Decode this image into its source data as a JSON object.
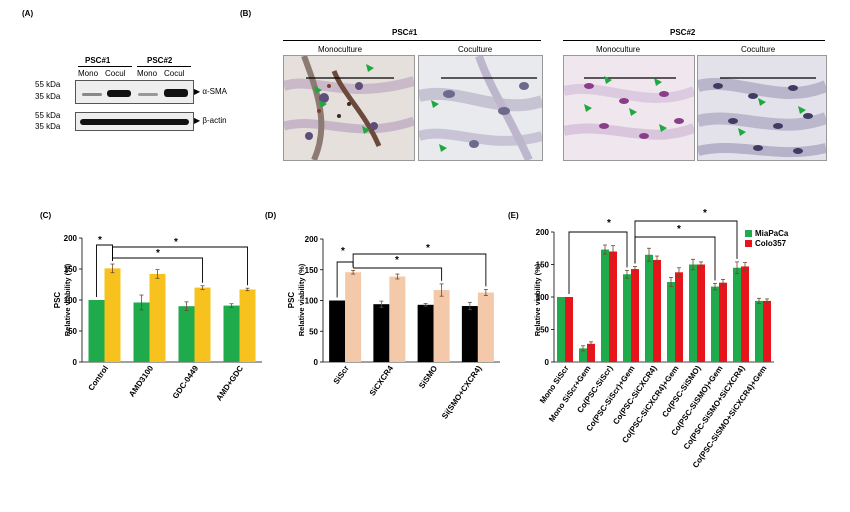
{
  "panels": {
    "A": {
      "label": "(A)",
      "groups": [
        "PSC#1",
        "PSC#2"
      ],
      "lanes": [
        "Mono",
        "Cocul",
        "Mono",
        "Cocul"
      ],
      "markers_top": [
        "55 kDa",
        "35 kDa"
      ],
      "markers_bottom": [
        "55 kDa",
        "35 kDa"
      ],
      "bands_top_label": "α-SMA",
      "bands_bottom_label": "β-actin"
    },
    "B": {
      "label": "(B)",
      "groups": [
        "PSC#1",
        "PSC#2"
      ],
      "images": [
        "Monoculture",
        "Coculture",
        "Monoculture",
        "Coculture"
      ]
    }
  },
  "chart_data": [
    {
      "id": "C",
      "label": "(C)",
      "type": "bar",
      "ylabel_top": "PSC",
      "ylabel": "Relative viability (%)",
      "ylim": [
        0,
        200
      ],
      "yticks": [
        0,
        50,
        100,
        150,
        200
      ],
      "categories": [
        "Control",
        "AMD3100",
        "GDC-0449",
        "AMD+GDC"
      ],
      "colors": [
        "#1faa4b",
        "#f7c11e"
      ],
      "series": [
        {
          "values": [
            100,
            96,
            90,
            91
          ],
          "errors": [
            0,
            12,
            7,
            3
          ]
        },
        {
          "values": [
            151,
            142,
            120,
            117
          ],
          "errors": [
            7,
            7,
            3,
            2
          ]
        }
      ],
      "annotations": [
        "*",
        "*",
        "*"
      ]
    },
    {
      "id": "D",
      "label": "(D)",
      "type": "bar",
      "ylabel_top": "PSC",
      "ylabel": "Relative viability (%)",
      "ylim": [
        0,
        200
      ],
      "yticks": [
        0,
        50,
        100,
        150,
        200
      ],
      "categories": [
        "SiScr",
        "SiCXCR4",
        "SiSMO",
        "Si(SMO+CXCR4)"
      ],
      "colors": [
        "#000000",
        "#f4c9aa"
      ],
      "series": [
        {
          "values": [
            100,
            94,
            93,
            91
          ],
          "errors": [
            0,
            5,
            2,
            6
          ]
        },
        {
          "values": [
            146,
            139,
            117,
            113
          ],
          "errors": [
            3,
            4,
            10,
            5
          ]
        }
      ],
      "annotations": [
        "*",
        "*",
        "*"
      ]
    },
    {
      "id": "E",
      "label": "(E)",
      "type": "bar",
      "ylabel": "Relative viability (%)",
      "ylim": [
        0,
        200
      ],
      "yticks": [
        0,
        50,
        100,
        150,
        200
      ],
      "categories": [
        "Mono SiScr",
        "Mono SiScr+Gem",
        "Co(PSC-SiScr)",
        "Co(PSC-SiScr)+Gem",
        "Co(PSC-SiCXCR4)",
        "Co(PSC-SiCXCR4)+Gem",
        "Co(PSC-SiSMO)",
        "Co(PSC-SiSMO)+Gem",
        "Co(PSC-SiSMO+SiCXCR4)",
        "Co(PSC-SiSMO+SiCXCR4)+Gem"
      ],
      "colors": [
        "#1faa4b",
        "#e8141b"
      ],
      "legend_position": "top-right",
      "series": [
        {
          "name": "MiaPaCa",
          "values": [
            100,
            21,
            173,
            135,
            165,
            123,
            150,
            116,
            145,
            94
          ],
          "errors": [
            0,
            4,
            7,
            6,
            10,
            7,
            8,
            5,
            9,
            4
          ]
        },
        {
          "name": "Colo357",
          "values": [
            100,
            28,
            170,
            143,
            157,
            138,
            150,
            122,
            147,
            94
          ],
          "errors": [
            0,
            3,
            9,
            4,
            6,
            7,
            4,
            5,
            6,
            3
          ]
        }
      ],
      "annotations": [
        "*",
        "*",
        "*"
      ]
    }
  ]
}
